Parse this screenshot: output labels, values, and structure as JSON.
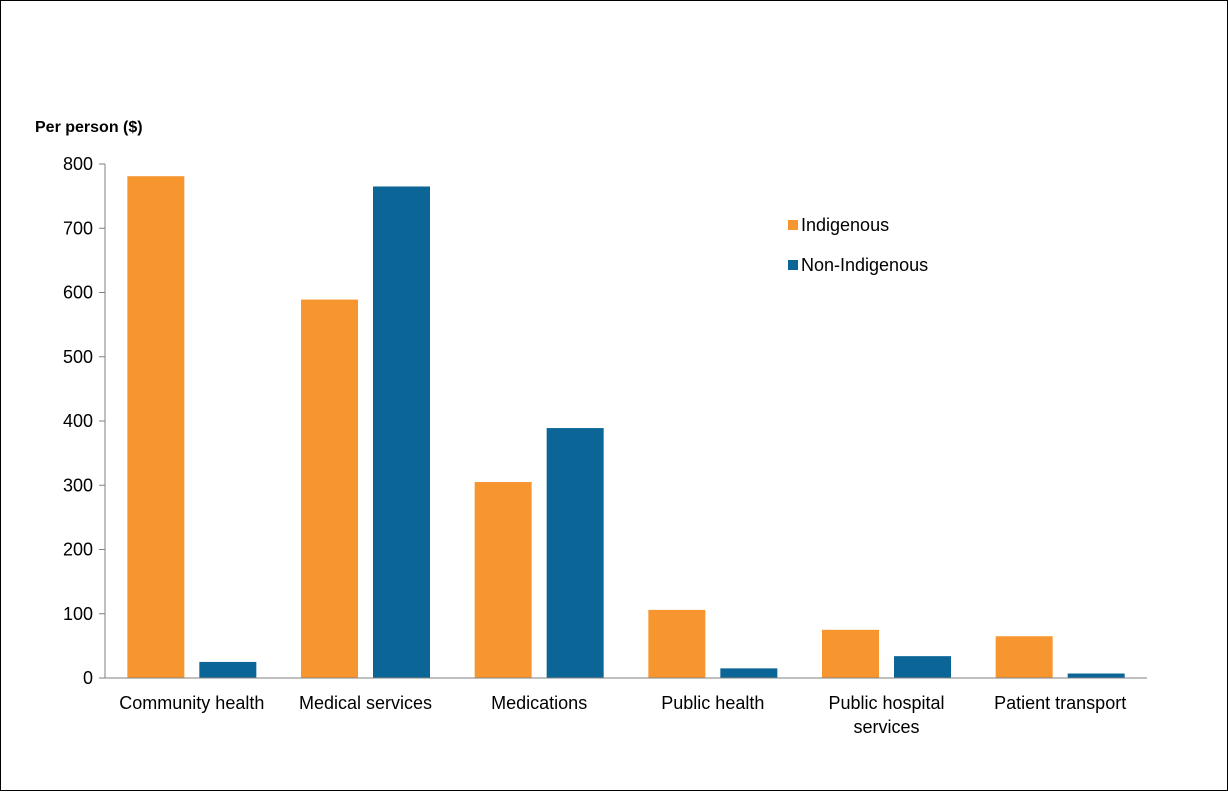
{
  "chart_data": {
    "type": "bar",
    "ylabel": "Per person ($)",
    "ylim": [
      0,
      800
    ],
    "yticks": [
      0,
      100,
      200,
      300,
      400,
      500,
      600,
      700,
      800
    ],
    "categories": [
      [
        "Community health"
      ],
      [
        "Medical services"
      ],
      [
        "Medications"
      ],
      [
        "Public health"
      ],
      [
        "Public hospital",
        "services"
      ],
      [
        "Patient transport"
      ]
    ],
    "series": [
      {
        "name": "Indigenous",
        "color": "#F7962E",
        "values": [
          781,
          589,
          305,
          106,
          75,
          65
        ]
      },
      {
        "name": "Non-Indigenous",
        "color": "#0B6596",
        "values": [
          25,
          765,
          389,
          15,
          34,
          7
        ]
      }
    ],
    "legend": "top-right",
    "grid": false
  }
}
